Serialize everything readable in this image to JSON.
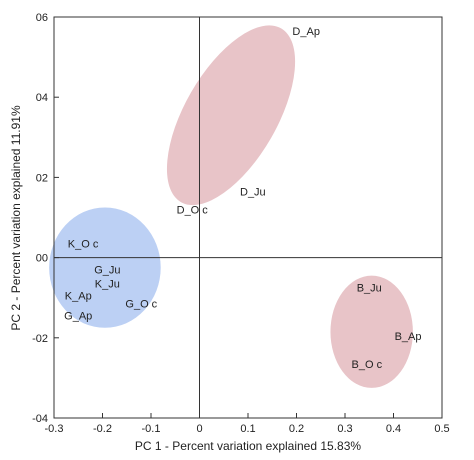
{
  "chart_data": {
    "type": "scatter",
    "title": "",
    "xlabel": "PC 1 - Percent variation explained 15.83%",
    "ylabel": "PC 2 - Percent variation explained 11.91%",
    "xlim": [
      -0.3,
      0.5
    ],
    "ylim": [
      -0.4,
      0.6
    ],
    "x_ticks": [
      -0.3,
      -0.2,
      -0.1,
      0,
      0.1,
      0.2,
      0.3,
      0.4,
      0.5
    ],
    "x_tick_labels": [
      "-0.3",
      "-0.2",
      "-0.1",
      "0",
      "0.1",
      "0.2",
      "0.3",
      "0.4",
      "0.5"
    ],
    "y_ticks": [
      -0.4,
      -0.2,
      0,
      0.2,
      0.4,
      0.6
    ],
    "y_tick_labels": [
      "-04",
      "-02",
      "00",
      "02",
      "04",
      "06"
    ],
    "zero_lines": true,
    "grid": false,
    "points": [
      {
        "label": "D_Ap",
        "x": 0.22,
        "y": 0.565
      },
      {
        "label": "D_Ju",
        "x": 0.11,
        "y": 0.165
      },
      {
        "label": "D_O c",
        "x": -0.015,
        "y": 0.12
      },
      {
        "label": "K_O c",
        "x": -0.24,
        "y": 0.035
      },
      {
        "label": "G_Ju",
        "x": -0.19,
        "y": -0.03
      },
      {
        "label": "K_Ju",
        "x": -0.19,
        "y": -0.065
      },
      {
        "label": "K_Ap",
        "x": -0.25,
        "y": -0.095
      },
      {
        "label": "G_O c",
        "x": -0.12,
        "y": -0.115
      },
      {
        "label": "G_Ap",
        "x": -0.25,
        "y": -0.145
      },
      {
        "label": "B_Ju",
        "x": 0.35,
        "y": -0.075
      },
      {
        "label": "B_Ap",
        "x": 0.43,
        "y": -0.195
      },
      {
        "label": "B_O c",
        "x": 0.345,
        "y": -0.265
      }
    ],
    "clusters": [
      {
        "color": "#e8c4c8",
        "cx": 0.065,
        "cy": 0.355,
        "rx": 0.095,
        "ry": 0.25,
        "rotate": 30
      },
      {
        "color": "#bcd0f4",
        "cx": -0.195,
        "cy": -0.025,
        "rx": 0.115,
        "ry": 0.15,
        "rotate": 0
      },
      {
        "color": "#e8c4c8",
        "cx": 0.355,
        "cy": -0.185,
        "rx": 0.085,
        "ry": 0.14,
        "rotate": 0
      }
    ]
  }
}
